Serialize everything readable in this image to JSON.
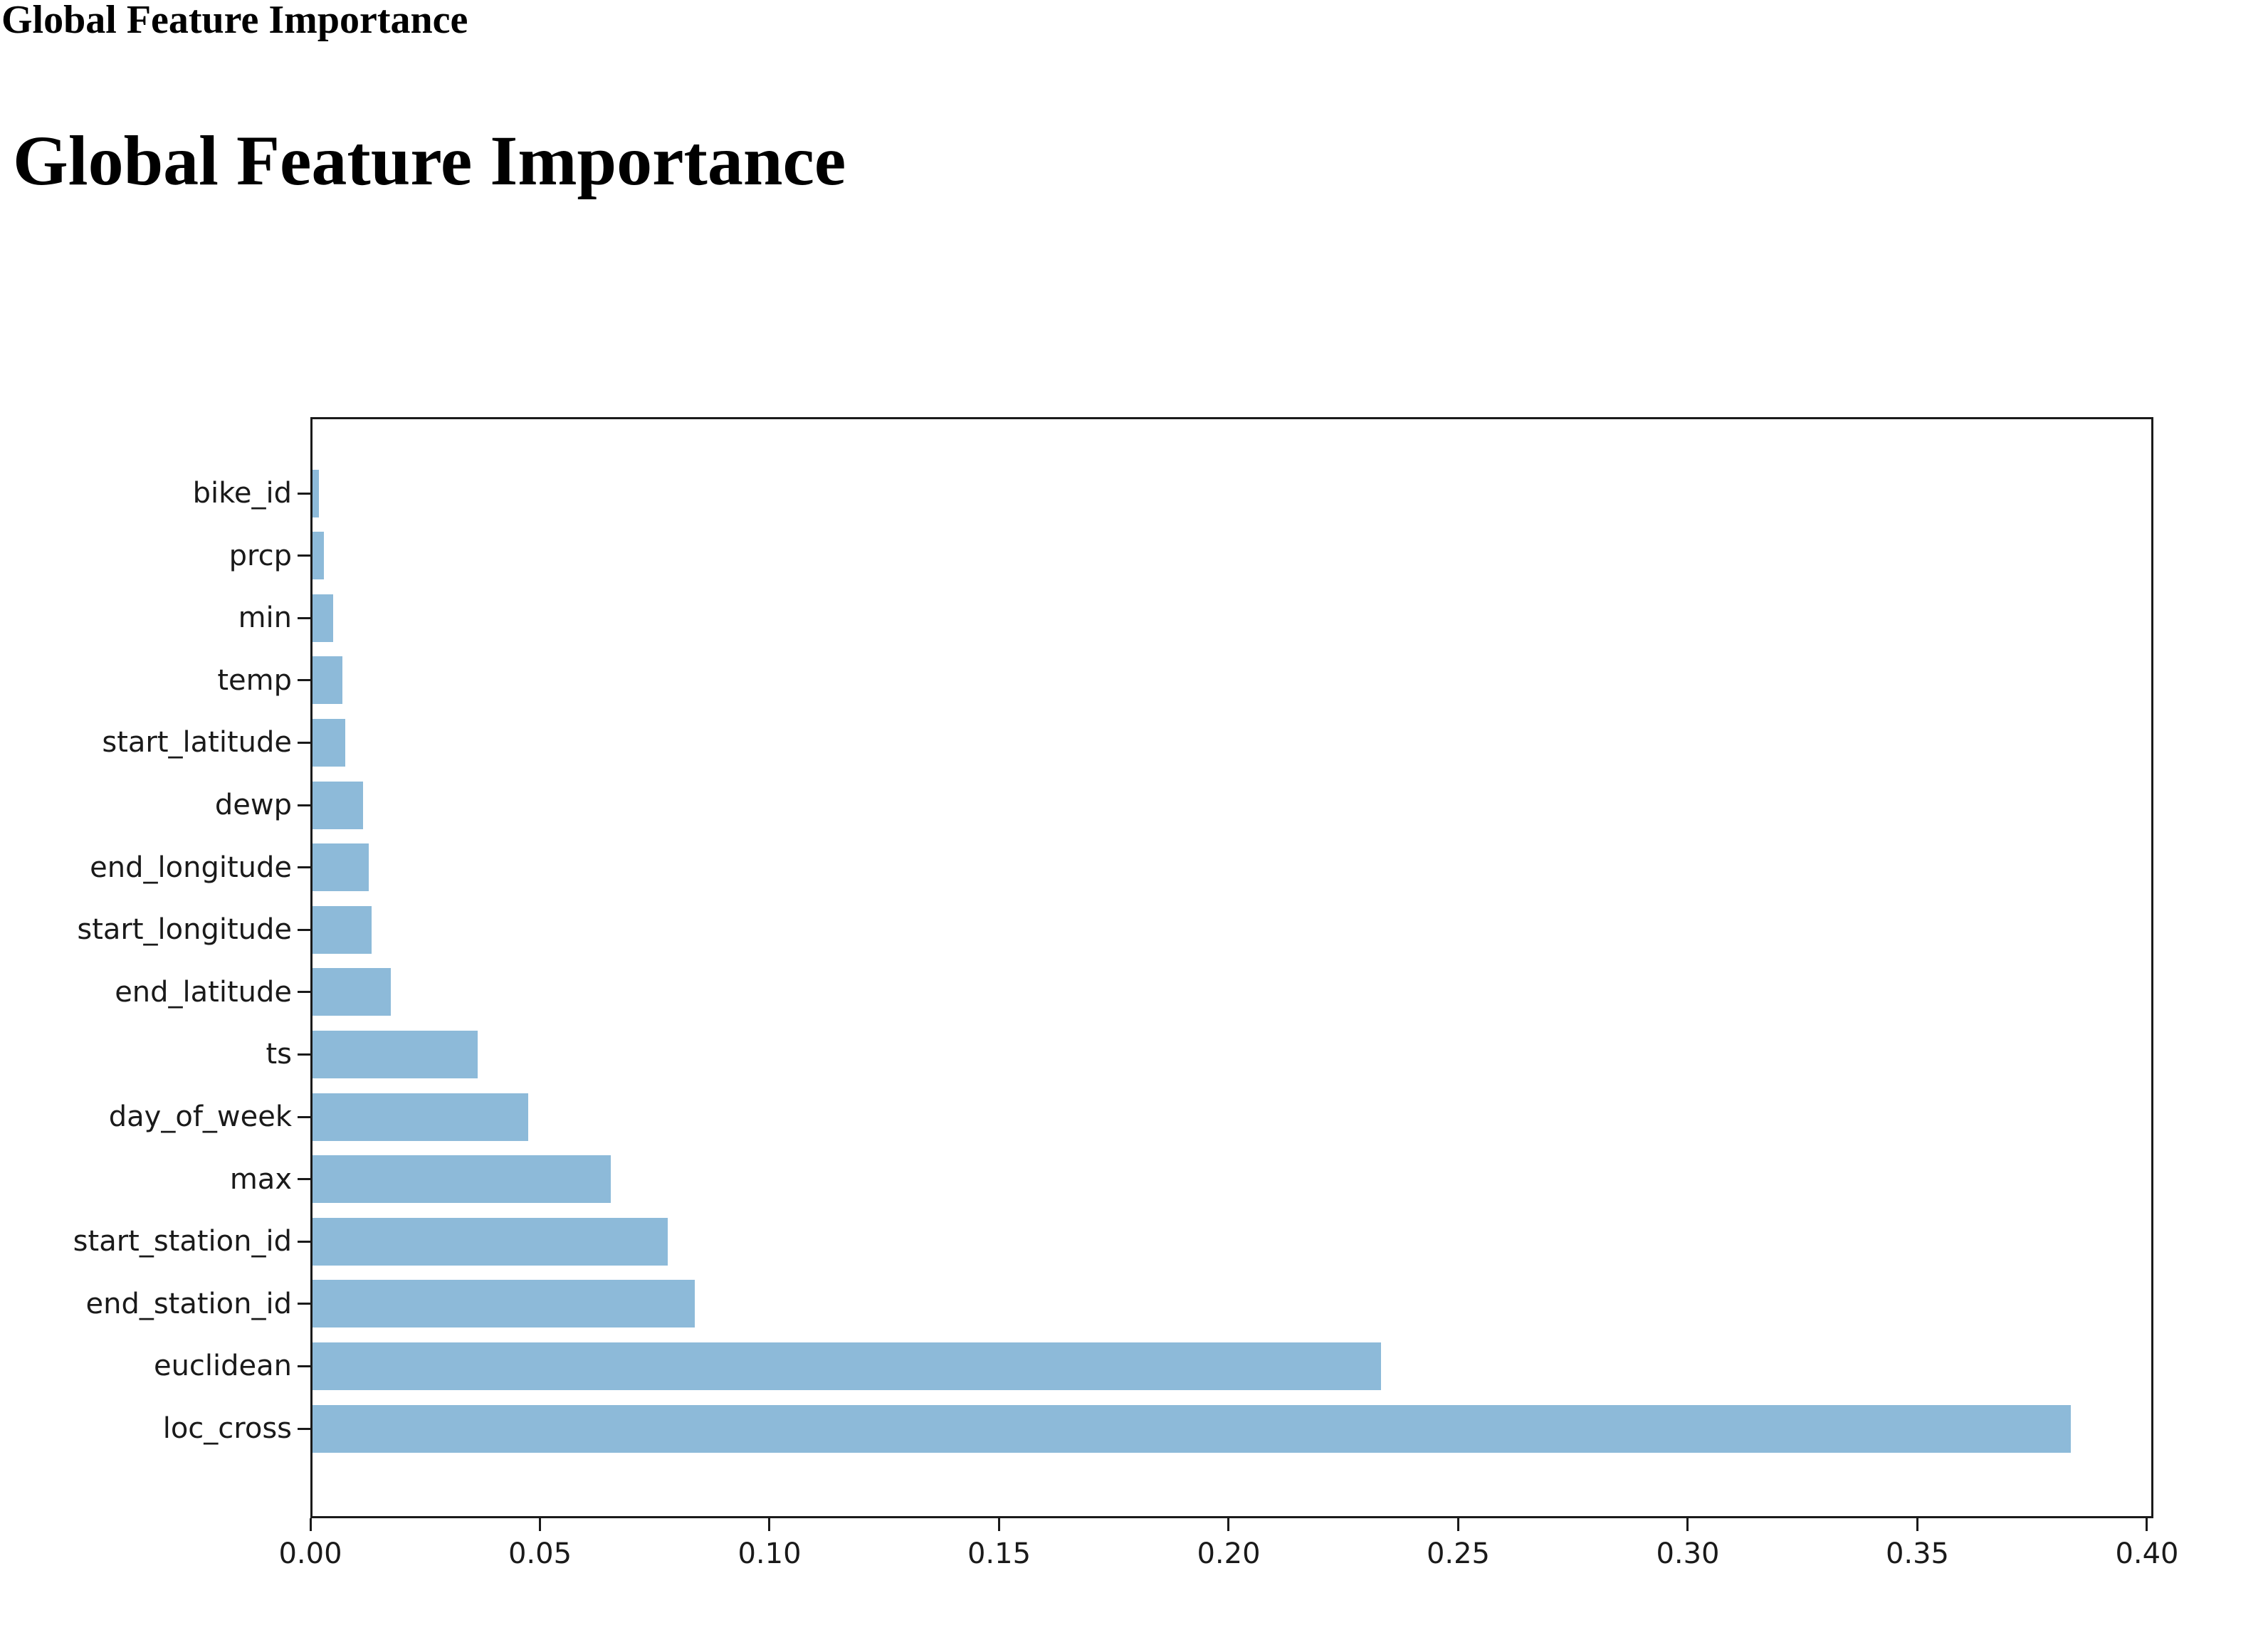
{
  "header": {
    "small_title": "Global Feature Importance",
    "large_title": "Global Feature Importance"
  },
  "chart_data": {
    "type": "bar",
    "orientation": "horizontal",
    "title": "Global Feature Importance",
    "xlabel": "",
    "ylabel": "",
    "grid": false,
    "legend": null,
    "bar_color": "#8dbad9",
    "axis_color": "#1a1a1a",
    "xlim": [
      0,
      0.4014
    ],
    "x_ticks": [
      0.0,
      0.05,
      0.1,
      0.15,
      0.2,
      0.25,
      0.3,
      0.35,
      0.4
    ],
    "x_tick_labels": [
      "0.00",
      "0.05",
      "0.10",
      "0.15",
      "0.20",
      "0.25",
      "0.30",
      "0.35",
      "0.40"
    ],
    "categories_top_to_bottom": [
      "bike_id",
      "prcp",
      "min",
      "temp",
      "start_latitude",
      "dewp",
      "end_longitude",
      "start_longitude",
      "end_latitude",
      "ts",
      "day_of_week",
      "max",
      "start_station_id",
      "end_station_id",
      "euclidean",
      "loc_cross"
    ],
    "values": [
      0.0014,
      0.0025,
      0.0045,
      0.0065,
      0.0072,
      0.011,
      0.0122,
      0.0128,
      0.017,
      0.036,
      0.0469,
      0.065,
      0.0774,
      0.0832,
      0.2327,
      0.383
    ]
  }
}
